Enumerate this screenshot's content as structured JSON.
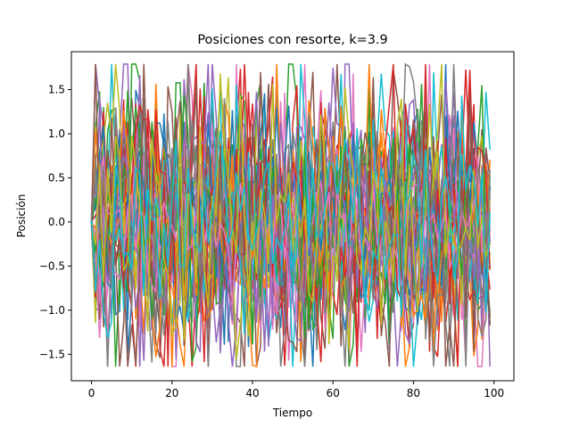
{
  "chart_data": {
    "type": "line",
    "title": "Posiciones con resorte, k=3.9",
    "xlabel": "Tiempo",
    "ylabel": "Posición",
    "xlim": [
      -5,
      104.95
    ],
    "ylim": [
      -1.8,
      1.93
    ],
    "xticks": [
      0,
      20,
      40,
      60,
      80,
      100
    ],
    "yticks": [
      -1.5,
      -1.0,
      -0.5,
      0.0,
      0.5,
      1.0,
      1.5
    ],
    "xtick_labels": [
      "0",
      "20",
      "40",
      "60",
      "80",
      "100"
    ],
    "ytick_labels": [
      "−1.5",
      "−1.0",
      "−0.5",
      "0.0",
      "0.5",
      "1.0",
      "1.5"
    ],
    "grid": false,
    "legend": "none",
    "time_steps": 100,
    "series_count": 40,
    "series_colors": [
      "#1f77b4",
      "#ff7f0e",
      "#2ca02c",
      "#d62728",
      "#9467bd",
      "#8c564b",
      "#e377c2",
      "#7f7f7f",
      "#bcbd22",
      "#17becf"
    ],
    "stats": {
      "y_min_observed": -1.64,
      "y_max_observed": 1.79,
      "y_typical_amplitude": 1.2,
      "y_start": 0.0
    }
  }
}
